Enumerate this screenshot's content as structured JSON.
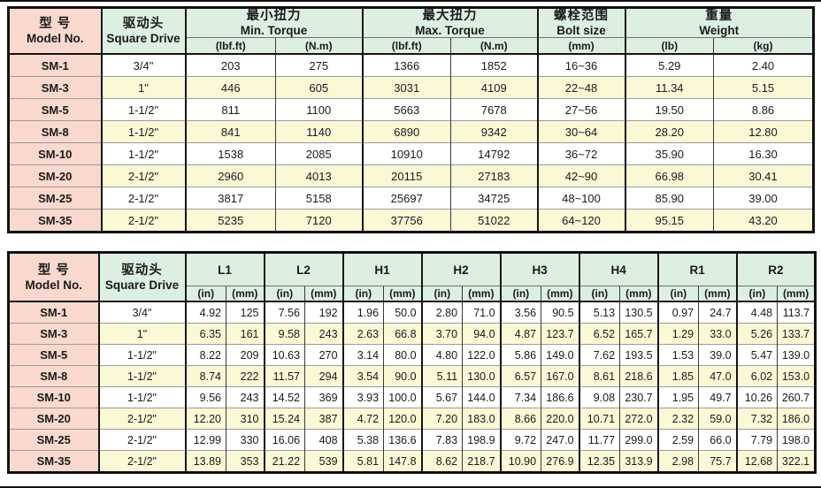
{
  "page": {
    "colors": {
      "model_column": "#f9d9cd",
      "header_green": "#ddefe1",
      "row_stripe_yellow": "#fbf8d6",
      "border_black": "#101010"
    }
  },
  "tables": [
    {
      "name": "torque-spec-table",
      "model_header": {
        "zh": "型 号",
        "en": "Model No."
      },
      "drive_header": {
        "zh": "驱动头",
        "en": "Square Drive"
      },
      "groups": [
        {
          "zh": "最小扭力",
          "en": "Min. Torque",
          "subs": [
            "(lbf.ft)",
            "(N.m)"
          ]
        },
        {
          "zh": "最大扭力",
          "en": "Max. Torque",
          "subs": [
            "(lbf.ft)",
            "(N.m)"
          ]
        },
        {
          "zh": "螺栓范围",
          "en": "Bolt size",
          "subs": [
            "(mm)"
          ]
        },
        {
          "zh": "重量",
          "en": "Weight",
          "subs": [
            "(lb)",
            "(kg)"
          ]
        }
      ],
      "rows": [
        [
          "SM-1",
          "3/4\"",
          "203",
          "275",
          "1366",
          "1852",
          "16~36",
          "5.29",
          "2.40"
        ],
        [
          "SM-3",
          "1\"",
          "446",
          "605",
          "3031",
          "4109",
          "22~48",
          "11.34",
          "5.15"
        ],
        [
          "SM-5",
          "1-1/2\"",
          "811",
          "1100",
          "5663",
          "7678",
          "27~56",
          "19.50",
          "8.86"
        ],
        [
          "SM-8",
          "1-1/2\"",
          "841",
          "1140",
          "6890",
          "9342",
          "30~64",
          "28.20",
          "12.80"
        ],
        [
          "SM-10",
          "1-1/2\"",
          "1538",
          "2085",
          "10910",
          "14792",
          "36~72",
          "35.90",
          "16.30"
        ],
        [
          "SM-20",
          "2-1/2\"",
          "2960",
          "4013",
          "20115",
          "27183",
          "42~90",
          "66.98",
          "30.41"
        ],
        [
          "SM-25",
          "2-1/2\"",
          "3817",
          "5158",
          "25697",
          "34725",
          "48~100",
          "85.90",
          "39.00"
        ],
        [
          "SM-35",
          "2-1/2\"",
          "5235",
          "7120",
          "37756",
          "51022",
          "64~120",
          "95.15",
          "43.20"
        ]
      ]
    },
    {
      "name": "dimensions-spec-table",
      "model_header": {
        "zh": "型 号",
        "en": "Model No."
      },
      "drive_header": {
        "zh": "驱动头",
        "en": "Square Drive"
      },
      "groups": [
        {
          "en": "L1",
          "subs": [
            "(in)",
            "(mm)"
          ]
        },
        {
          "en": "L2",
          "subs": [
            "(in)",
            "(mm)"
          ]
        },
        {
          "en": "H1",
          "subs": [
            "(in)",
            "(mm)"
          ]
        },
        {
          "en": "H2",
          "subs": [
            "(in)",
            "(mm)"
          ]
        },
        {
          "en": "H3",
          "subs": [
            "(in)",
            "(mm)"
          ]
        },
        {
          "en": "H4",
          "subs": [
            "(in)",
            "(mm)"
          ]
        },
        {
          "en": "R1",
          "subs": [
            "(in)",
            "(mm)"
          ]
        },
        {
          "en": "R2",
          "subs": [
            "(in)",
            "(mm)"
          ]
        }
      ],
      "rows": [
        [
          "SM-1",
          "3/4\"",
          "4.92",
          "125",
          "7.56",
          "192",
          "1.96",
          "50.0",
          "2.80",
          "71.0",
          "3.56",
          "90.5",
          "5.13",
          "130.5",
          "0.97",
          "24.7",
          "4.48",
          "113.7"
        ],
        [
          "SM-3",
          "1\"",
          "6.35",
          "161",
          "9.58",
          "243",
          "2.63",
          "66.8",
          "3.70",
          "94.0",
          "4.87",
          "123.7",
          "6.52",
          "165.7",
          "1.29",
          "33.0",
          "5.26",
          "133.7"
        ],
        [
          "SM-5",
          "1-1/2\"",
          "8.22",
          "209",
          "10.63",
          "270",
          "3.14",
          "80.0",
          "4.80",
          "122.0",
          "5.86",
          "149.0",
          "7.62",
          "193.5",
          "1.53",
          "39.0",
          "5.47",
          "139.0"
        ],
        [
          "SM-8",
          "1-1/2\"",
          "8.74",
          "222",
          "11.57",
          "294",
          "3.54",
          "90.0",
          "5.11",
          "130.0",
          "6.57",
          "167.0",
          "8.61",
          "218.6",
          "1.85",
          "47.0",
          "6.02",
          "153.0"
        ],
        [
          "SM-10",
          "1-1/2\"",
          "9.56",
          "243",
          "14.52",
          "369",
          "3.93",
          "100.0",
          "5.67",
          "144.0",
          "7.34",
          "186.6",
          "9.08",
          "230.7",
          "1.95",
          "49.7",
          "10.26",
          "260.7"
        ],
        [
          "SM-20",
          "2-1/2\"",
          "12.20",
          "310",
          "15.24",
          "387",
          "4.72",
          "120.0",
          "7.20",
          "183.0",
          "8.66",
          "220.0",
          "10.71",
          "272.0",
          "2.32",
          "59.0",
          "7.32",
          "186.0"
        ],
        [
          "SM-25",
          "2-1/2\"",
          "12.99",
          "330",
          "16.06",
          "408",
          "5.38",
          "136.6",
          "7.83",
          "198.9",
          "9.72",
          "247.0",
          "11.77",
          "299.0",
          "2.59",
          "66.0",
          "7.79",
          "198.0"
        ],
        [
          "SM-35",
          "2-1/2\"",
          "13.89",
          "353",
          "21.22",
          "539",
          "5.81",
          "147.8",
          "8.62",
          "218.7",
          "10.90",
          "276.9",
          "12.35",
          "313.9",
          "2.98",
          "75.7",
          "12.68",
          "322.1"
        ]
      ]
    }
  ]
}
